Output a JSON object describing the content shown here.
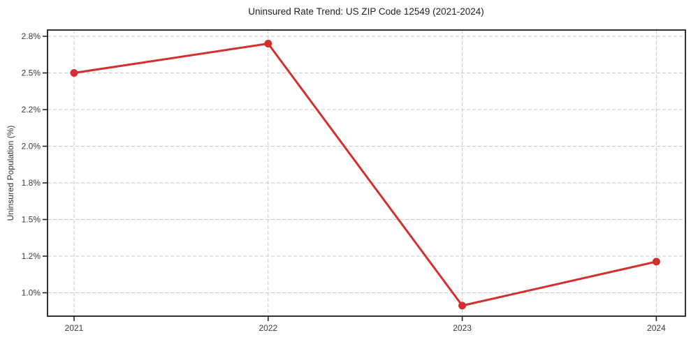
{
  "chart_data": {
    "type": "line",
    "title": "Uninsured Rate Trend: US ZIP Code 12549 (2021-2024)",
    "xlabel": "",
    "ylabel": "Uninsured Population (%)",
    "x": [
      "2021",
      "2022",
      "2023",
      "2024"
    ],
    "series": [
      {
        "name": "Uninsured rate",
        "values": [
          2.5,
          2.74,
          0.93,
          1.17
        ]
      }
    ],
    "ytick_labels": [
      "2.8%",
      "2.5%",
      "2.2%",
      "2.0%",
      "1.8%",
      "1.5%",
      "1.2%",
      "1.0%"
    ],
    "ytick_values": [
      2.8,
      2.5,
      2.2,
      2.0,
      1.8,
      1.5,
      1.2,
      1.0
    ],
    "grid": true,
    "legend": "none",
    "marker": "circle",
    "colors": {
      "line": "#d32f2f",
      "marker": "#d32f2f",
      "grid": "#c9c9c9",
      "spine": "#1a1a1a",
      "tick_label": "#3a3a3a",
      "title": "#222222"
    }
  }
}
